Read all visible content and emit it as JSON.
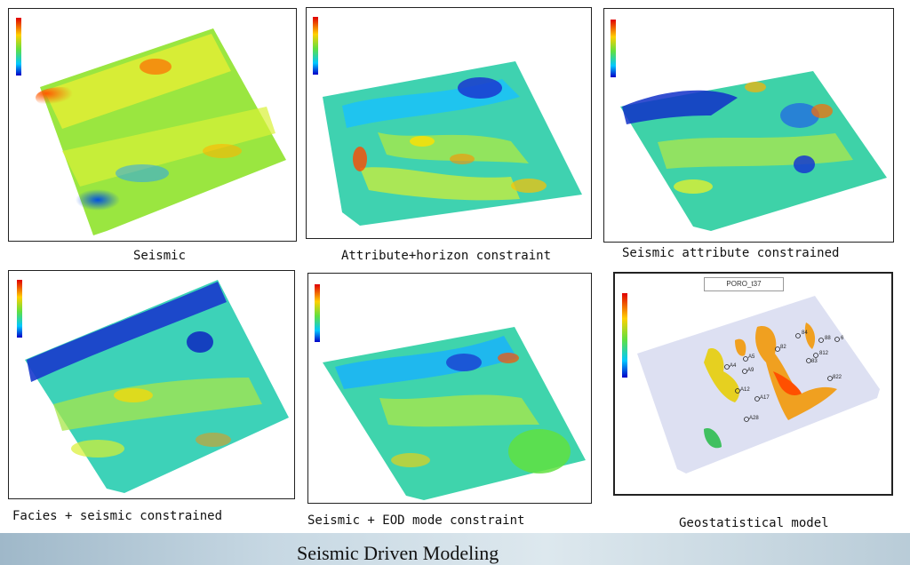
{
  "panels": [
    {
      "caption": "Seismic",
      "style": "smooth"
    },
    {
      "caption": "Attribute+horizon constraint",
      "style": "noisy"
    },
    {
      "caption": "Seismic attribute constrained",
      "style": "noisy"
    },
    {
      "caption": "Facies + seismic constrained",
      "style": "noisy-blue"
    },
    {
      "caption": "Seismic + EOD mode constraint",
      "style": "noisy"
    },
    {
      "caption": "Geostatistical model",
      "style": "geostat"
    }
  ],
  "geostat": {
    "legend_title": "PORO_t37",
    "wells": [
      "84",
      "88",
      "6",
      "812",
      "83",
      "82",
      "A5",
      "A4",
      "A9",
      "A12",
      "A17",
      "822",
      "A28"
    ]
  },
  "footer": {
    "title": "Seismic Driven Modeling"
  },
  "colors": {
    "scale": [
      "#0000c8",
      "#0060ff",
      "#00c8ff",
      "#40e0a0",
      "#60e040",
      "#d0f000",
      "#ffd000",
      "#ff6000",
      "#e00000"
    ]
  }
}
